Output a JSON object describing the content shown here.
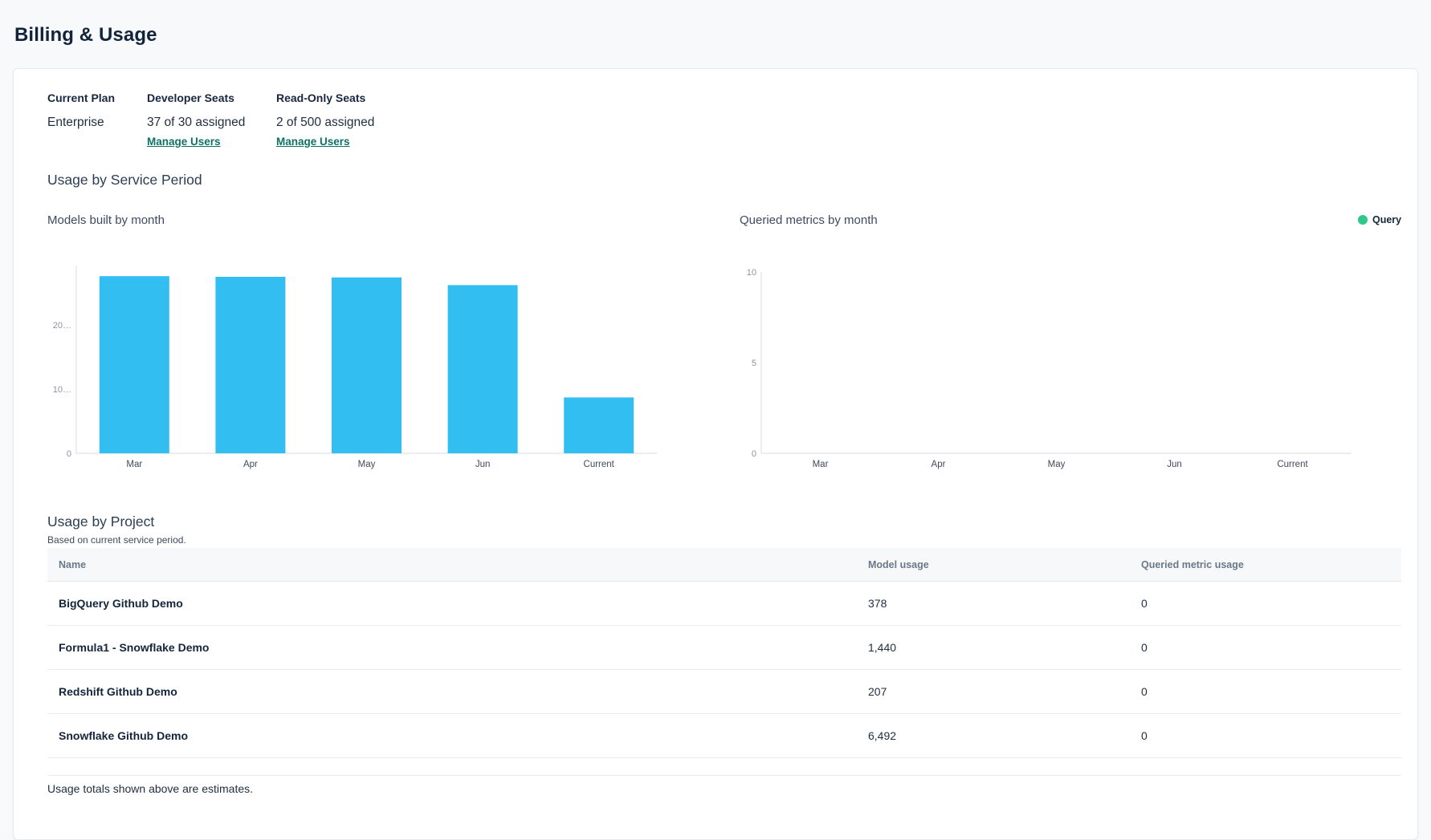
{
  "page": {
    "title": "Billing & Usage"
  },
  "plan": {
    "columns": [
      {
        "label": "Current Plan",
        "value": "Enterprise",
        "link": null
      },
      {
        "label": "Developer Seats",
        "value": "37 of 30 assigned",
        "link": "Manage Users"
      },
      {
        "label": "Read-Only Seats",
        "value": "2 of 500 assigned",
        "link": "Manage Users"
      }
    ]
  },
  "usage_section": {
    "heading": "Usage by Service Period"
  },
  "chart_data": [
    {
      "type": "bar",
      "title": "Models built by month",
      "categories": [
        "Mar",
        "Apr",
        "May",
        "Jun",
        "Current"
      ],
      "values": [
        27600,
        27500,
        27400,
        26200,
        8700
      ],
      "ylim": [
        0,
        30000
      ],
      "yticks": [
        {
          "value": 0,
          "label": "0"
        },
        {
          "value": 10000,
          "label": "10…"
        },
        {
          "value": 20000,
          "label": "20…"
        }
      ],
      "bar_color": "#33bef2",
      "grid": false,
      "legend_position": "none"
    },
    {
      "type": "bar",
      "title": "Queried metrics by month",
      "categories": [
        "Mar",
        "Apr",
        "May",
        "Jun",
        "Current"
      ],
      "values": [
        0,
        0,
        0,
        0,
        0
      ],
      "ylim": [
        0,
        10
      ],
      "yticks": [
        {
          "value": 0,
          "label": "0"
        },
        {
          "value": 5,
          "label": "5"
        },
        {
          "value": 10,
          "label": "10"
        }
      ],
      "grid": false,
      "legend_position": "top-right",
      "legend": [
        {
          "label": "Query",
          "color": "#2ec78c"
        }
      ]
    }
  ],
  "project_usage": {
    "heading": "Usage by Project",
    "subheading": "Based on current service period.",
    "columns": [
      "Name",
      "Model usage",
      "Queried metric usage"
    ],
    "rows": [
      {
        "name": "BigQuery Github Demo",
        "model_usage": "378",
        "queried_metric_usage": "0"
      },
      {
        "name": "Formula1 - Snowflake Demo",
        "model_usage": "1,440",
        "queried_metric_usage": "0"
      },
      {
        "name": "Redshift Github Demo",
        "model_usage": "207",
        "queried_metric_usage": "0"
      },
      {
        "name": "Snowflake Github Demo",
        "model_usage": "6,492",
        "queried_metric_usage": "0"
      }
    ]
  },
  "footer": {
    "note": "Usage totals shown above are estimates."
  },
  "colors": {
    "bar_blue": "#33bef2",
    "legend_green": "#2ec78c",
    "link_teal": "#0e7166",
    "page_background": "#f8f9fa",
    "text_dark": "#14253c"
  }
}
